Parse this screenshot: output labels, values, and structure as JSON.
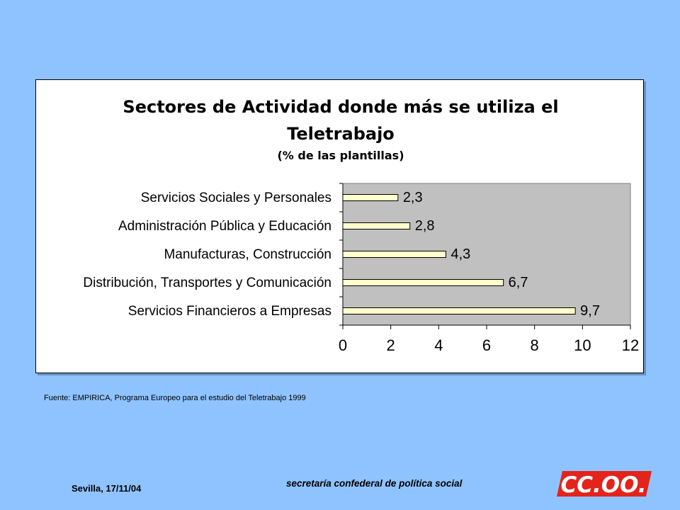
{
  "chart_data": {
    "type": "bar",
    "orientation": "horizontal",
    "title": "Sectores de Actividad donde más se utiliza el Teletrabajo",
    "title_lines": [
      "Sectores de Actividad donde más se utiliza el",
      "Teletrabajo"
    ],
    "subtitle": "(% de las plantillas)",
    "categories": [
      "Servicios Sociales y Personales",
      "Administración Pública y Educación",
      "Manufacturas, Construcción",
      "Distribución, Transportes y Comunicación",
      "Servicios Financieros a Empresas"
    ],
    "values": [
      2.3,
      2.8,
      4.3,
      6.7,
      9.7
    ],
    "value_labels": [
      "2,3",
      "2,8",
      "4,3",
      "6,7",
      "9,7"
    ],
    "xlim": [
      0,
      12
    ],
    "xticks": [
      0,
      2,
      4,
      6,
      8,
      10,
      12
    ],
    "xlabel": "",
    "ylabel": "",
    "grid": false,
    "legend": "none",
    "colors": {
      "bar_fill": "#ffffcc",
      "bar_stroke": "#000000",
      "plot_background": "#c0c0c0"
    }
  },
  "source_note": "Fuente: EMPIRICA,  Programa Europeo para el estudio del Teletrabajo  1999",
  "footer": {
    "date": "Sevilla, 17/11/04",
    "organization": "secretaría confederal de política social",
    "logo_text": "CC.OO."
  },
  "colors": {
    "page_background": "#8fc3ff",
    "logo_red": "#e3241b"
  }
}
